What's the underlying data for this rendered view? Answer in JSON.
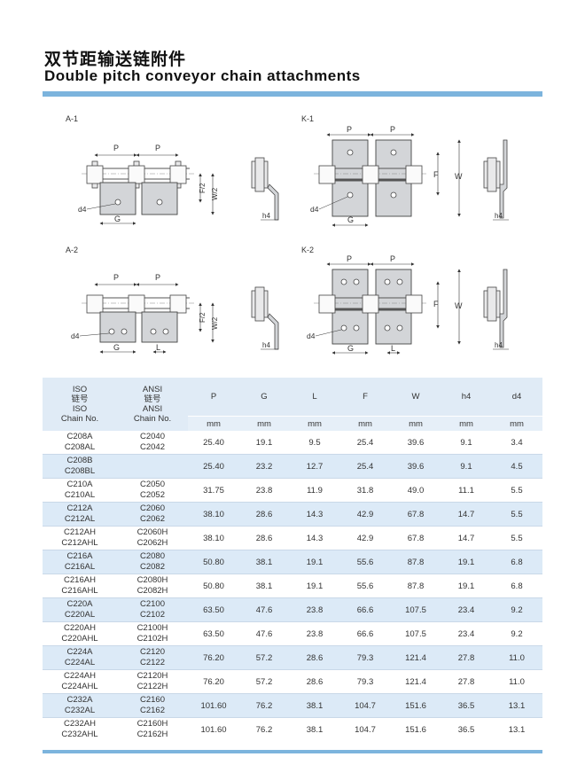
{
  "title": {
    "cn": "双节距输送链附件",
    "en": "Double pitch conveyor chain attachments"
  },
  "colors": {
    "accent": "#7cb4dd",
    "band": "#dceaf7",
    "plate": "#d3d5d8"
  },
  "diagrams": {
    "a1": {
      "label": "A-1",
      "p": "P",
      "g": "G",
      "d4": "d4",
      "f2": "F/2",
      "w2": "W/2",
      "h4": "h4"
    },
    "a2": {
      "label": "A-2",
      "p": "P",
      "g": "G",
      "l": "L",
      "d4": "d4",
      "f2": "F/2",
      "w2": "W/2",
      "h4": "h4"
    },
    "k1": {
      "label": "K-1",
      "p": "P",
      "g": "G",
      "d4": "d4",
      "f": "F",
      "w": "W",
      "h4": "h4"
    },
    "k2": {
      "label": "K-2",
      "p": "P",
      "g": "G",
      "l": "L",
      "d4": "d4",
      "f": "F",
      "w": "W",
      "h4": "h4"
    }
  },
  "table": {
    "headers": {
      "iso": [
        "ISO",
        "链号",
        "ISO",
        "Chain No."
      ],
      "ansi": [
        "ANSI",
        "链号",
        "ANSI",
        "Chain No."
      ],
      "cols": [
        "P",
        "G",
        "L",
        "F",
        "W",
        "h4",
        "d4"
      ],
      "units": [
        "mm",
        "mm",
        "mm",
        "mm",
        "mm",
        "mm",
        "mm"
      ]
    },
    "groups": [
      {
        "iso": [
          "C208A",
          "C208AL"
        ],
        "ansi": [
          "C2040",
          "C2042"
        ],
        "vals": [
          "25.40",
          "19.1",
          "9.5",
          "25.4",
          "39.6",
          "9.1",
          "3.4"
        ]
      },
      {
        "iso": [
          "C208B",
          "C208BL"
        ],
        "ansi": [
          "",
          ""
        ],
        "vals": [
          "25.40",
          "23.2",
          "12.7",
          "25.4",
          "39.6",
          "9.1",
          "4.5"
        ]
      },
      {
        "iso": [
          "C210A",
          "C210AL"
        ],
        "ansi": [
          "C2050",
          "C2052"
        ],
        "vals": [
          "31.75",
          "23.8",
          "11.9",
          "31.8",
          "49.0",
          "11.1",
          "5.5"
        ]
      },
      {
        "iso": [
          "C212A",
          "C212AL"
        ],
        "ansi": [
          "C2060",
          "C2062"
        ],
        "vals": [
          "38.10",
          "28.6",
          "14.3",
          "42.9",
          "67.8",
          "14.7",
          "5.5"
        ]
      },
      {
        "iso": [
          "C212AH",
          "C212AHL"
        ],
        "ansi": [
          "C2060H",
          "C2062H"
        ],
        "vals": [
          "38.10",
          "28.6",
          "14.3",
          "42.9",
          "67.8",
          "14.7",
          "5.5"
        ]
      },
      {
        "iso": [
          "C216A",
          "C216AL"
        ],
        "ansi": [
          "C2080",
          "C2082"
        ],
        "vals": [
          "50.80",
          "38.1",
          "19.1",
          "55.6",
          "87.8",
          "19.1",
          "6.8"
        ]
      },
      {
        "iso": [
          "C216AH",
          "C216AHL"
        ],
        "ansi": [
          "C2080H",
          "C2082H"
        ],
        "vals": [
          "50.80",
          "38.1",
          "19.1",
          "55.6",
          "87.8",
          "19.1",
          "6.8"
        ]
      },
      {
        "iso": [
          "C220A",
          "C220AL"
        ],
        "ansi": [
          "C2100",
          "C2102"
        ],
        "vals": [
          "63.50",
          "47.6",
          "23.8",
          "66.6",
          "107.5",
          "23.4",
          "9.2"
        ]
      },
      {
        "iso": [
          "C220AH",
          "C220AHL"
        ],
        "ansi": [
          "C2100H",
          "C2102H"
        ],
        "vals": [
          "63.50",
          "47.6",
          "23.8",
          "66.6",
          "107.5",
          "23.4",
          "9.2"
        ]
      },
      {
        "iso": [
          "C224A",
          "C224AL"
        ],
        "ansi": [
          "C2120",
          "C2122"
        ],
        "vals": [
          "76.20",
          "57.2",
          "28.6",
          "79.3",
          "121.4",
          "27.8",
          "11.0"
        ]
      },
      {
        "iso": [
          "C224AH",
          "C224AHL"
        ],
        "ansi": [
          "C2120H",
          "C2122H"
        ],
        "vals": [
          "76.20",
          "57.2",
          "28.6",
          "79.3",
          "121.4",
          "27.8",
          "11.0"
        ]
      },
      {
        "iso": [
          "C232A",
          "C232AL"
        ],
        "ansi": [
          "C2160",
          "C2162"
        ],
        "vals": [
          "101.60",
          "76.2",
          "38.1",
          "104.7",
          "151.6",
          "36.5",
          "13.1"
        ]
      },
      {
        "iso": [
          "C232AH",
          "C232AHL"
        ],
        "ansi": [
          "C2160H",
          "C2162H"
        ],
        "vals": [
          "101.60",
          "76.2",
          "38.1",
          "104.7",
          "151.6",
          "36.5",
          "13.1"
        ]
      }
    ]
  }
}
